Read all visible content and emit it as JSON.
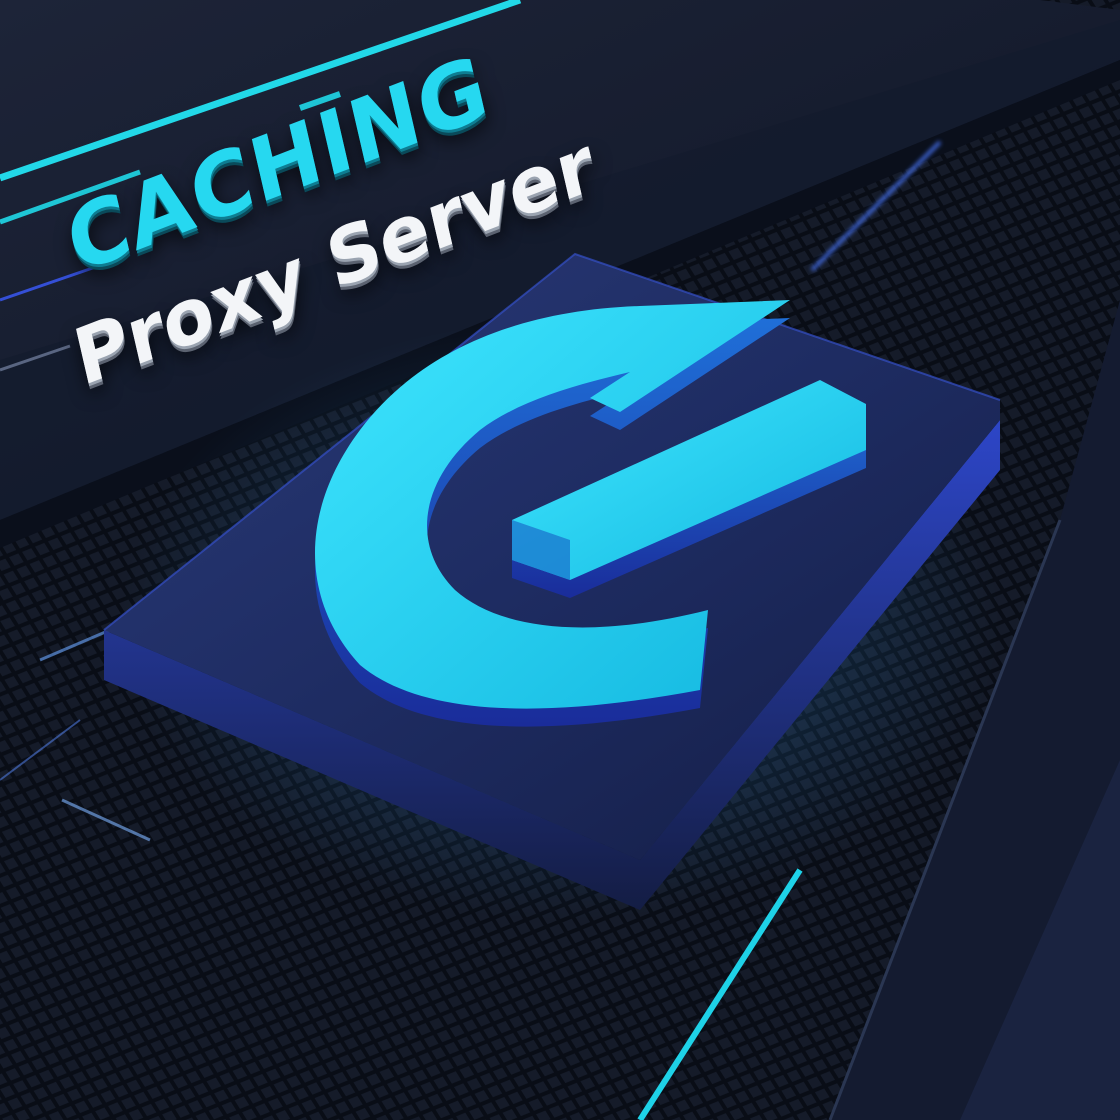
{
  "title": {
    "line1": "CACHING",
    "line2": "Proxy Server"
  },
  "logo": {
    "icon": "stylized-c-clock-icon"
  },
  "colors": {
    "background": "#0d1322",
    "panel": "#141b2e",
    "block": "#1c2a5c",
    "accent_cyan": "#26d8f0",
    "accent_blue": "#3b5bff",
    "text_white": "#f3f5f8"
  }
}
